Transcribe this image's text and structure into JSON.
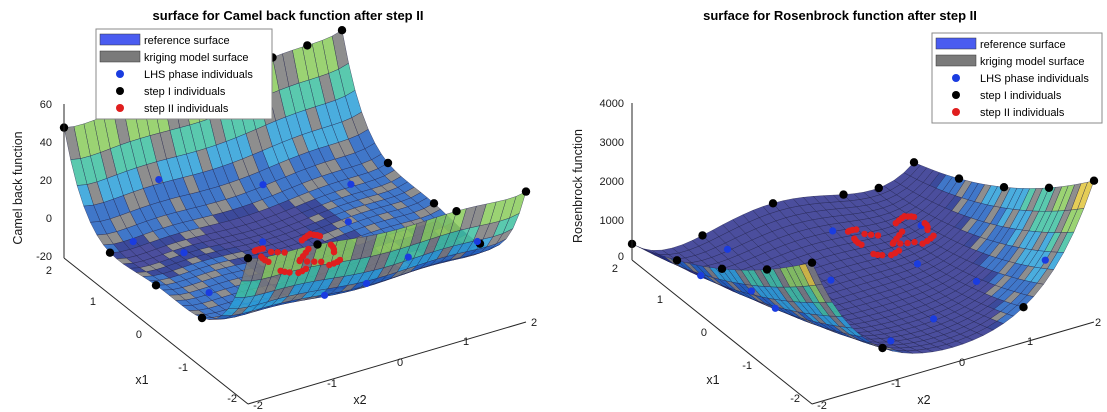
{
  "colors": {
    "reference_surface": "#4a5cf0",
    "kriging_surface": "#7a7a7a",
    "lhs_points": "#1a3ce0",
    "step1_points": "#000000",
    "step2_points": "#e01e1e",
    "surface_dark": "#2c2f8c",
    "surface_mesh": "#22244a",
    "colormap": [
      "#1a2a8a",
      "#1f5fc0",
      "#2a9fd8",
      "#3dbfa0",
      "#8acb5a",
      "#e0c43a"
    ]
  },
  "chart_data": [
    {
      "type": "surface",
      "title": "surface for Camel back function after step II",
      "xlabel": "x2",
      "ylabel": "x1",
      "zlabel": "Camel back function",
      "xticks": [
        "-2",
        "-1",
        "0",
        "1",
        "2"
      ],
      "yticks": [
        "-2",
        "-1",
        "0",
        "1",
        "2"
      ],
      "zticks": [
        "-20",
        "0",
        "20",
        "40",
        "60"
      ],
      "xlim": [
        -2,
        2
      ],
      "ylim": [
        -2,
        2
      ],
      "zlim": [
        -20,
        60
      ],
      "legend": {
        "placement": "top-left",
        "entries": [
          "reference surface",
          "kriging model surface",
          "LHS phase individuals",
          "step I individuals",
          "step II individuals"
        ]
      }
    },
    {
      "type": "surface",
      "title": "surface for Rosenbrock function after step II",
      "xlabel": "x2",
      "ylabel": "x1",
      "zlabel": "Rosenbrock function",
      "xticks": [
        "-2",
        "-1",
        "0",
        "1",
        "2"
      ],
      "yticks": [
        "-2",
        "-1",
        "0",
        "1",
        "2"
      ],
      "zticks": [
        "0",
        "1000",
        "2000",
        "3000",
        "4000"
      ],
      "xlim": [
        -2,
        2
      ],
      "ylim": [
        -2,
        2
      ],
      "zlim": [
        0,
        4000
      ],
      "legend": {
        "placement": "top-right",
        "entries": [
          "reference surface",
          "kriging model surface",
          "LHS phase individuals",
          "step I individuals",
          "step II individuals"
        ]
      }
    }
  ]
}
